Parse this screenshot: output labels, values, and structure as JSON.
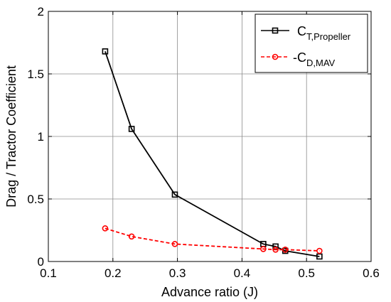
{
  "chart_data": {
    "type": "line",
    "xlabel": "Advance ratio (J)",
    "ylabel": "Drag / Tractor Coefficient",
    "xlim": [
      0.1,
      0.6
    ],
    "ylim": [
      0,
      2
    ],
    "grid": true,
    "legend_position": "top-right",
    "x_ticks": [
      "0.1",
      "0.2",
      "0.3",
      "0.4",
      "0.5",
      "0.6"
    ],
    "y_ticks": [
      "0",
      "0.5",
      "1",
      "1.5",
      "2"
    ],
    "series": [
      {
        "name": "C",
        "name_subscript": "T,Propeller",
        "color": "#000000",
        "line_style": "solid",
        "marker": "square",
        "x": [
          0.188,
          0.229,
          0.296,
          0.433,
          0.452,
          0.467,
          0.52
        ],
        "y": [
          1.68,
          1.06,
          0.535,
          0.14,
          0.12,
          0.085,
          0.04
        ]
      },
      {
        "name": "-C",
        "name_subscript": "D,MAV",
        "color": "#ff0000",
        "line_style": "dashed",
        "marker": "circle",
        "x": [
          0.188,
          0.229,
          0.296,
          0.433,
          0.452,
          0.467,
          0.52
        ],
        "y": [
          0.265,
          0.2,
          0.14,
          0.1,
          0.095,
          0.095,
          0.085
        ]
      }
    ]
  }
}
